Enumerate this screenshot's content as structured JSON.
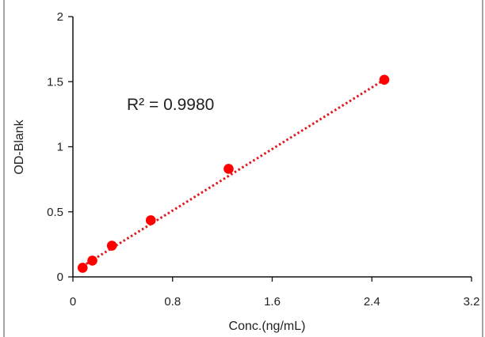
{
  "chart_data": {
    "type": "scatter",
    "title": "",
    "xlabel": "Conc.(ng/mL)",
    "ylabel": "OD-Blank",
    "xlim": [
      0,
      3.2
    ],
    "ylim": [
      0,
      2
    ],
    "x_ticks": [
      "0",
      "0.8",
      "1.6",
      "2.4",
      "3.2"
    ],
    "y_ticks": [
      "0",
      "0.5",
      "1",
      "1.5",
      "2"
    ],
    "grid": false,
    "legend": "none",
    "series": [
      {
        "x": [
          0.078,
          0.156,
          0.313,
          0.625,
          1.25,
          2.5
        ],
        "y": [
          0.07,
          0.125,
          0.24,
          0.435,
          0.83,
          1.515
        ],
        "marker_color": "#ff0000"
      }
    ],
    "trendline": {
      "type": "linear",
      "style": "dotted",
      "color": "#e0191f",
      "from": [
        0.078,
        0.082
      ],
      "to": [
        2.5,
        1.515
      ],
      "r_squared_label": "R² = 0.9980"
    }
  }
}
